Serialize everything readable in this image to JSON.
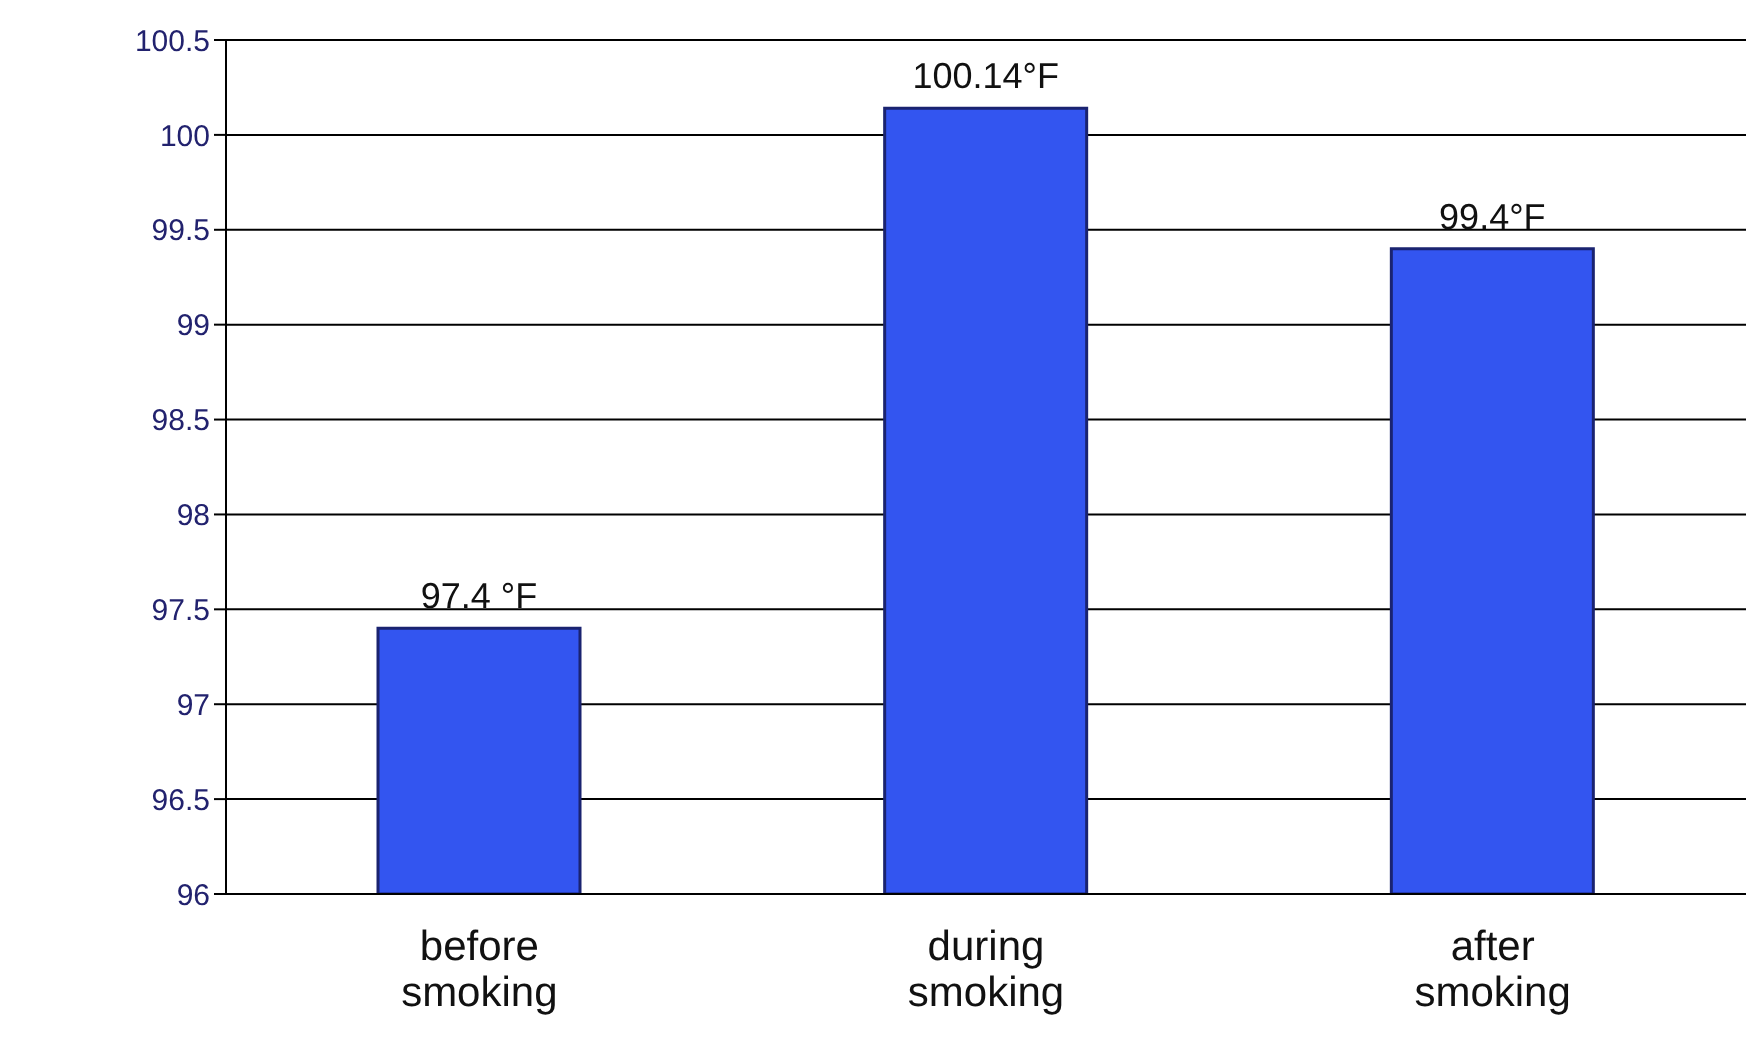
{
  "chart_data": {
    "type": "bar",
    "categories": [
      "before smoking",
      "during smoking",
      "after smoking"
    ],
    "values": [
      97.4,
      100.14,
      99.4
    ],
    "value_labels": [
      "97.4 °F",
      "100.14°F",
      "99.4°F"
    ],
    "color": "#3355f0",
    "ylim": [
      96,
      100.5
    ],
    "yticks": [
      96,
      96.5,
      97,
      97.5,
      98,
      98.5,
      99,
      99.5,
      100,
      100.5
    ],
    "grid": "y"
  }
}
